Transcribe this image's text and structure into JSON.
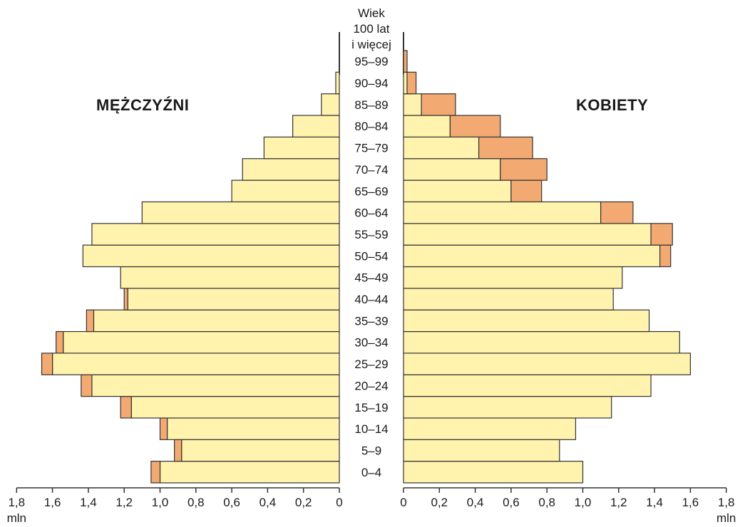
{
  "chart_data": {
    "type": "bar",
    "subtype": "population-pyramid",
    "age_header": [
      "Wiek",
      "100 lat",
      "i więcej"
    ],
    "left_label": "MĘŻCZYŹNI",
    "right_label": "KOBIETY",
    "unit": "mln",
    "categories": [
      "0–4",
      "5–9",
      "10–14",
      "15–19",
      "20–24",
      "25–29",
      "30–34",
      "35–39",
      "40–44",
      "45–49",
      "50–54",
      "55–59",
      "60–64",
      "65–69",
      "70–74",
      "75–79",
      "80–84",
      "85–89",
      "90–94",
      "95–99"
    ],
    "series": [
      {
        "side": "left",
        "part": "base",
        "values": [
          1.0,
          0.88,
          0.96,
          1.16,
          1.38,
          1.6,
          1.54,
          1.37,
          1.18,
          1.22,
          1.43,
          1.38,
          1.1,
          0.6,
          0.54,
          0.42,
          0.26,
          0.1,
          0.02,
          0.0
        ]
      },
      {
        "side": "left",
        "part": "excess",
        "values": [
          0.05,
          0.04,
          0.04,
          0.06,
          0.06,
          0.06,
          0.04,
          0.04,
          0.02,
          0.0,
          0.0,
          0.0,
          0.0,
          0.0,
          0.0,
          0.0,
          0.0,
          0.0,
          0.0,
          0.0
        ]
      },
      {
        "side": "right",
        "part": "base",
        "values": [
          1.0,
          0.87,
          0.96,
          1.16,
          1.38,
          1.6,
          1.54,
          1.37,
          1.17,
          1.22,
          1.43,
          1.38,
          1.1,
          0.6,
          0.54,
          0.42,
          0.26,
          0.1,
          0.02,
          0.0
        ]
      },
      {
        "side": "right",
        "part": "excess",
        "values": [
          0.0,
          0.0,
          0.0,
          0.0,
          0.0,
          0.0,
          0.0,
          0.0,
          0.0,
          0.0,
          0.06,
          0.12,
          0.18,
          0.17,
          0.26,
          0.3,
          0.28,
          0.19,
          0.05,
          0.02
        ]
      }
    ],
    "left_ticks": [
      "1,8",
      "1,6",
      "1,4",
      "1,2",
      "1,0",
      "0,8",
      "0,6",
      "0,4",
      "0,2",
      "0"
    ],
    "right_ticks": [
      "0",
      "0,2",
      "0,4",
      "0,6",
      "0,8",
      "1,0",
      "1,2",
      "1,4",
      "1,6",
      "1,8"
    ],
    "xlim": [
      0,
      1.8
    ],
    "colors": {
      "base": "#fff3ad",
      "excess": "#f2aa72",
      "stroke": "#333333"
    }
  }
}
